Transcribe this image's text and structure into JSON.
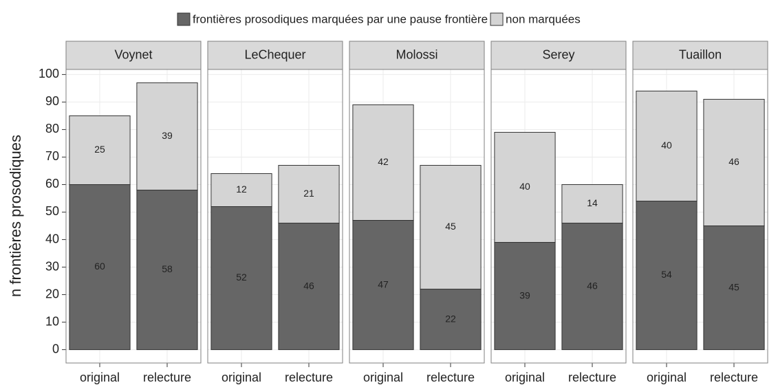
{
  "chart_data": {
    "type": "bar",
    "stacked": true,
    "ylabel": "n frontières prosodiques",
    "ylim": [
      -4.85,
      101.85
    ],
    "yticks": [
      0,
      10,
      20,
      30,
      40,
      50,
      60,
      70,
      80,
      90,
      100
    ],
    "grid": true,
    "legend": "top",
    "series": [
      {
        "name": "frontières prosodiques marquées par une pause frontière",
        "color": "#666666"
      },
      {
        "name": "non marquées",
        "color": "#d4d4d4"
      }
    ],
    "facets": [
      {
        "title": "Voynet",
        "categories": [
          "original",
          "relecture"
        ],
        "series": [
          {
            "values": [
              60,
              58
            ]
          },
          {
            "values": [
              25,
              39
            ]
          }
        ]
      },
      {
        "title": "LeChequer",
        "categories": [
          "original",
          "relecture"
        ],
        "series": [
          {
            "values": [
              52,
              46
            ]
          },
          {
            "values": [
              12,
              21
            ]
          }
        ]
      },
      {
        "title": "Molossi",
        "categories": [
          "original",
          "relecture"
        ],
        "series": [
          {
            "values": [
              47,
              22
            ]
          },
          {
            "values": [
              42,
              45
            ]
          }
        ]
      },
      {
        "title": "Serey",
        "categories": [
          "original",
          "relecture"
        ],
        "series": [
          {
            "values": [
              39,
              46
            ]
          },
          {
            "values": [
              40,
              14
            ]
          }
        ]
      },
      {
        "title": "Tuaillon",
        "categories": [
          "original",
          "relecture"
        ],
        "series": [
          {
            "values": [
              54,
              45
            ]
          },
          {
            "values": [
              40,
              46
            ]
          }
        ]
      }
    ]
  }
}
